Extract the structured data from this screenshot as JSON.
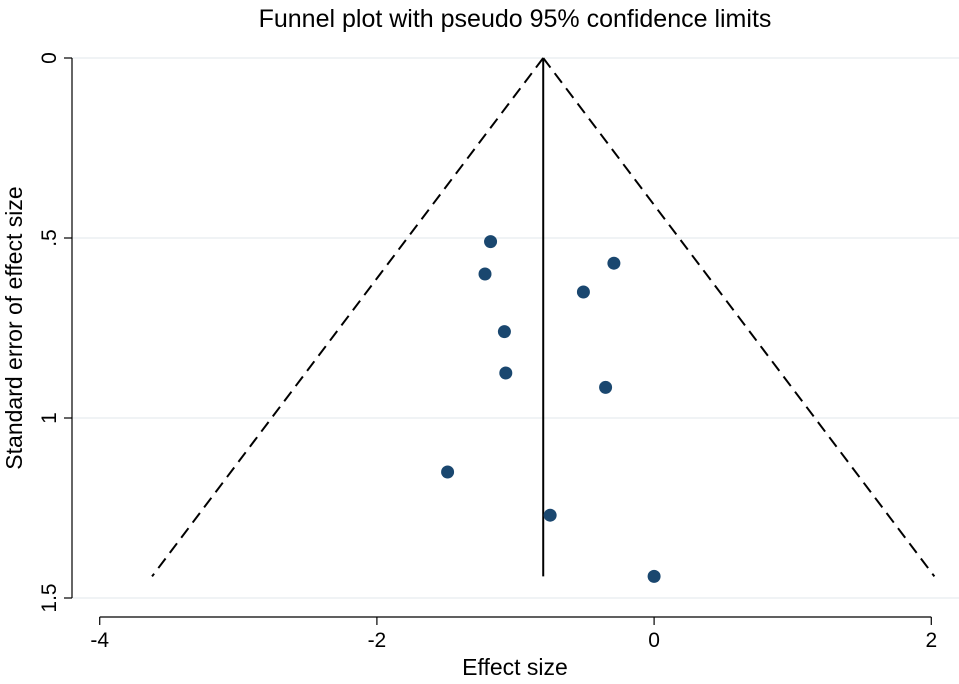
{
  "chart_data": {
    "type": "scatter",
    "title": "Funnel plot with pseudo 95% confidence limits",
    "xlabel": "Effect size",
    "ylabel": "Standard error of effect size",
    "xlim": [
      -4.2,
      2.2
    ],
    "ylim": [
      0,
      1.5
    ],
    "y_reversed": true,
    "x_ticks": [
      {
        "value": -4,
        "label": "-4"
      },
      {
        "value": -2,
        "label": "-2"
      },
      {
        "value": 0,
        "label": "0"
      },
      {
        "value": 2,
        "label": "2"
      }
    ],
    "y_ticks": [
      {
        "value": 0,
        "label": "0"
      },
      {
        "value": 0.5,
        "label": ".5"
      },
      {
        "value": 1,
        "label": "1"
      },
      {
        "value": 1.5,
        "label": "1.5"
      }
    ],
    "grid": true,
    "pooled_effect": -0.8,
    "se_max": 1.44,
    "ci_multiplier": 1.96,
    "point_color": "#1a476f",
    "points": [
      {
        "x": -1.18,
        "y": 0.51
      },
      {
        "x": -1.22,
        "y": 0.6
      },
      {
        "x": -0.29,
        "y": 0.57
      },
      {
        "x": -0.51,
        "y": 0.65
      },
      {
        "x": -1.08,
        "y": 0.76
      },
      {
        "x": -1.07,
        "y": 0.875
      },
      {
        "x": -0.35,
        "y": 0.915
      },
      {
        "x": -1.49,
        "y": 1.15
      },
      {
        "x": -0.75,
        "y": 1.27
      },
      {
        "x": 0.0,
        "y": 1.44
      }
    ]
  }
}
